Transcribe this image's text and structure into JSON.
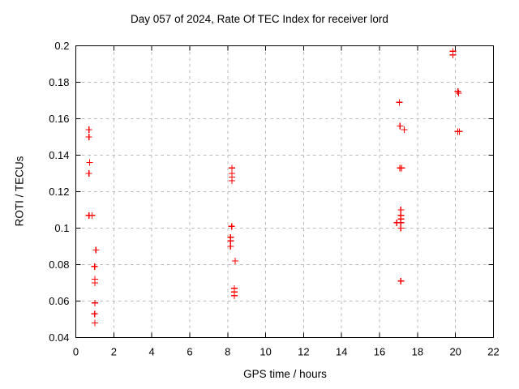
{
  "page": {
    "background": "#ffffff"
  },
  "chart_data": {
    "type": "scatter",
    "title": "Day 057 of 2024, Rate Of TEC Index for receiver lord",
    "xlabel": "GPS time / hours",
    "ylabel": "ROTI / TECUs",
    "xlim": [
      0,
      22
    ],
    "ylim": [
      0.04,
      0.2
    ],
    "xticks": [
      0,
      2,
      4,
      6,
      8,
      10,
      12,
      14,
      16,
      18,
      20,
      22
    ],
    "xtick_labels": [
      "0",
      "2",
      "4",
      "6",
      "8",
      "10",
      "12",
      "14",
      "16",
      "18",
      "20",
      "22"
    ],
    "yticks": [
      0.04,
      0.06,
      0.08,
      0.1,
      0.12,
      0.14,
      0.16,
      0.18,
      0.2
    ],
    "ytick_labels": [
      "0.04",
      "0.06",
      "0.08",
      "0.1",
      "0.12",
      "0.14",
      "0.16",
      "0.18",
      "0.2"
    ],
    "grid": true,
    "legend": "none",
    "marker": {
      "style": "plus",
      "color": "#ff0000",
      "size": 9
    },
    "axis_color": "#000000",
    "grid_color": "#b9b9b9",
    "series": [
      {
        "name": "ROTI",
        "points": [
          [
            0.69,
            0.154
          ],
          [
            0.69,
            0.15
          ],
          [
            0.73,
            0.136
          ],
          [
            0.69,
            0.13
          ],
          [
            0.69,
            0.107
          ],
          [
            0.86,
            0.107
          ],
          [
            1.06,
            0.088
          ],
          [
            0.99,
            0.079
          ],
          [
            1.01,
            0.072
          ],
          [
            1.01,
            0.07
          ],
          [
            1.01,
            0.059
          ],
          [
            0.99,
            0.053
          ],
          [
            1.01,
            0.048
          ],
          [
            8.22,
            0.133
          ],
          [
            8.22,
            0.13
          ],
          [
            8.22,
            0.128
          ],
          [
            8.22,
            0.126
          ],
          [
            8.21,
            0.101
          ],
          [
            8.15,
            0.095
          ],
          [
            8.15,
            0.093
          ],
          [
            8.15,
            0.09
          ],
          [
            8.39,
            0.082
          ],
          [
            8.35,
            0.067
          ],
          [
            8.35,
            0.065
          ],
          [
            8.35,
            0.063
          ],
          [
            17.04,
            0.169
          ],
          [
            17.08,
            0.156
          ],
          [
            17.3,
            0.154
          ],
          [
            17.08,
            0.133
          ],
          [
            17.17,
            0.133
          ],
          [
            17.12,
            0.11
          ],
          [
            17.12,
            0.107
          ],
          [
            17.12,
            0.105
          ],
          [
            16.91,
            0.103
          ],
          [
            17.12,
            0.103
          ],
          [
            17.12,
            0.1
          ],
          [
            17.12,
            0.071
          ],
          [
            19.86,
            0.197
          ],
          [
            19.86,
            0.195
          ],
          [
            20.13,
            0.175
          ],
          [
            20.16,
            0.174
          ],
          [
            20.12,
            0.153
          ],
          [
            20.21,
            0.153
          ]
        ]
      }
    ]
  }
}
